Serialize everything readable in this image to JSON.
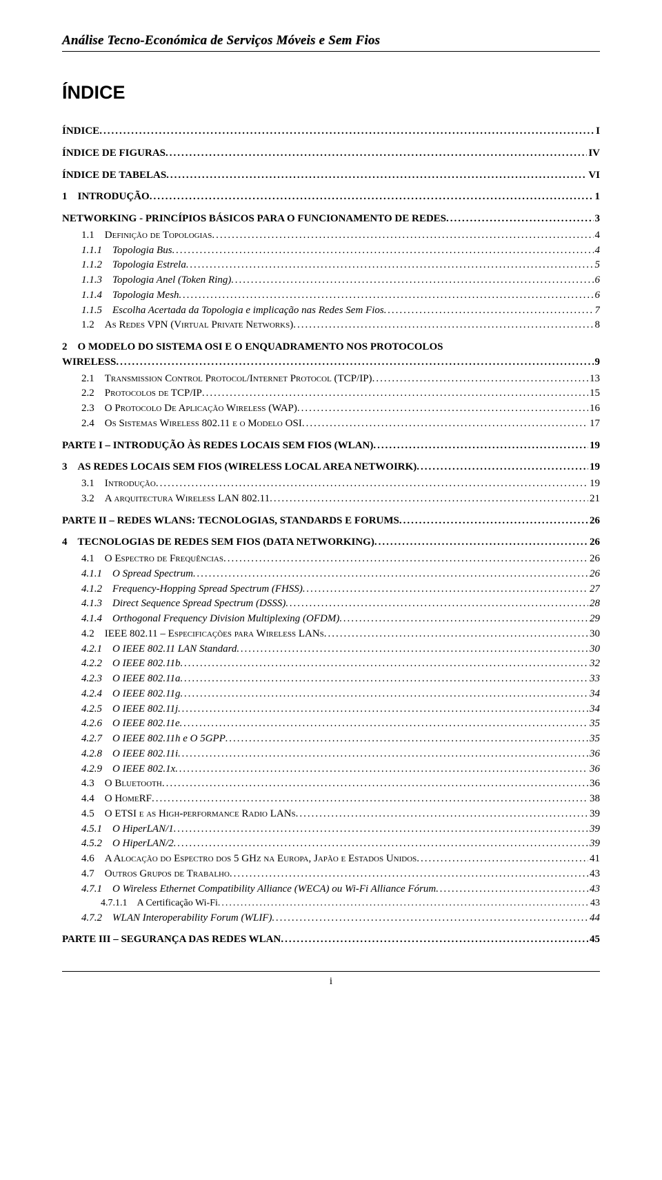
{
  "header": {
    "title": "Análise Tecno-Económica de Serviços Móveis e Sem Fios"
  },
  "index_heading": "ÍNDICE",
  "toc": [
    {
      "cls": "lvl-top",
      "label": "ÍNDICE",
      "page": "I"
    },
    {
      "cls": "lvl-top",
      "label": "ÍNDICE DE FIGURAS",
      "page": "IV"
    },
    {
      "cls": "lvl-top",
      "label": "ÍNDICE DE TABELAS",
      "page": "VI"
    },
    {
      "cls": "lvl-1",
      "label": "1 INTRODUÇÃO",
      "page": "1"
    },
    {
      "cls": "lvl-1",
      "label": "NETWORKING - PRINCÍPIOS BÁSICOS PARA O FUNCIONAMENTO DE REDES",
      "page": "3"
    },
    {
      "cls": "lvl-2",
      "label_html": "1.1 D<span class='sc'>efinição de Topologias</span>",
      "page": "4"
    },
    {
      "cls": "lvl-3",
      "label": "1.1.1 Topologia Bus",
      "page": "4"
    },
    {
      "cls": "lvl-3",
      "label": "1.1.2 Topologia Estrela",
      "page": "5"
    },
    {
      "cls": "lvl-3",
      "label": "1.1.3 Topologia Anel (Token Ring)",
      "page": "6"
    },
    {
      "cls": "lvl-3",
      "label": "1.1.4 Topologia Mesh",
      "page": "6"
    },
    {
      "cls": "lvl-3",
      "label": "1.1.5 Escolha Acertada da Topologia e implicação nas Redes Sem Fios",
      "page": "7"
    },
    {
      "cls": "lvl-2",
      "label_html": "1.2 A<span class='sc'>s Redes</span> VPN (V<span class='sc'>irtual Private Networks</span>)",
      "page": "8"
    },
    {
      "cls": "lvl-1",
      "label": "2 O MODELO DO SISTEMA OSI E O ENQUADRAMENTO NOS PROTOCOLOS WIRELESS",
      "page": "9",
      "wrap": true
    },
    {
      "cls": "lvl-2",
      "label_html": "2.1 T<span class='sc'>ransmission Control Protocol/Internet Protocol</span> (TCP/IP)",
      "page": "13"
    },
    {
      "cls": "lvl-2",
      "label_html": "2.2 P<span class='sc'>rotocolos de</span> TCP/IP",
      "page": "15"
    },
    {
      "cls": "lvl-2",
      "label_html": "2.3 O P<span class='sc'>rotocolo De Aplicação Wireless</span> (WAP)",
      "page": "16"
    },
    {
      "cls": "lvl-2",
      "label_html": "2.4 O<span class='sc'>s Sistemas Wireless</span> 802.11 <span class='sc'>e o Modelo</span> OSI",
      "page": "17"
    },
    {
      "cls": "lvl-1",
      "label": "PARTE I – INTRODUÇÃO ÀS REDES LOCAIS SEM FIOS (WLAN)",
      "page": "19"
    },
    {
      "cls": "lvl-1",
      "label": "3 AS REDES LOCAIS SEM FIOS (WIRELESS LOCAL AREA NETWOIRK)",
      "page": "19"
    },
    {
      "cls": "lvl-2",
      "label_html": "3.1 I<span class='sc'>ntrodução</span>",
      "page": "19"
    },
    {
      "cls": "lvl-2",
      "label_html": "3.2 A <span class='sc'>arquitectura Wireless</span> LAN 802.11",
      "page": "21"
    },
    {
      "cls": "lvl-1",
      "label": "PARTE II – REDES WLANS: TECNOLOGIAS, STANDARDS E FORUMS",
      "page": "26"
    },
    {
      "cls": "lvl-1",
      "label": "4 TECNOLOGIAS DE REDES SEM FIOS (DATA NETWORKING)",
      "page": "26"
    },
    {
      "cls": "lvl-2",
      "label_html": "4.1 O E<span class='sc'>spectro de Frequências</span>",
      "page": "26"
    },
    {
      "cls": "lvl-3",
      "label": "4.1.1 O Spread Spectrum",
      "page": "26"
    },
    {
      "cls": "lvl-3",
      "label": "4.1.2 Frequency-Hopping Spread Spectrum (FHSS)",
      "page": "27"
    },
    {
      "cls": "lvl-3",
      "label": "4.1.3 Direct Sequence Spread Spectrum (DSSS)",
      "page": "28"
    },
    {
      "cls": "lvl-3",
      "label": "4.1.4 Orthogonal Frequency Division Multiplexing (OFDM)",
      "page": "29"
    },
    {
      "cls": "lvl-2",
      "label_html": "4.2 IEEE 802.11 – E<span class='sc'>specificações para Wireless</span> LAN<span class='sc'>s</span>",
      "page": "30"
    },
    {
      "cls": "lvl-3",
      "label": "4.2.1 O IEEE 802.11 LAN Standard",
      "page": "30"
    },
    {
      "cls": "lvl-3",
      "label": "4.2.2 O IEEE 802.11b",
      "page": "32"
    },
    {
      "cls": "lvl-3",
      "label": "4.2.3 O IEEE 802.11a",
      "page": "33"
    },
    {
      "cls": "lvl-3",
      "label": "4.2.4 O IEEE 802.11g",
      "page": "34"
    },
    {
      "cls": "lvl-3",
      "label": "4.2.5 O IEEE 802.11j",
      "page": "34"
    },
    {
      "cls": "lvl-3",
      "label": "4.2.6 O IEEE 802.11e",
      "page": "35"
    },
    {
      "cls": "lvl-3",
      "label": "4.2.7 O IEEE 802.11h e O 5GPP",
      "page": "35"
    },
    {
      "cls": "lvl-3",
      "label": "4.2.8 O IEEE 802.11i",
      "page": "36"
    },
    {
      "cls": "lvl-3",
      "label": "4.2.9 O IEEE 802.1x",
      "page": "36"
    },
    {
      "cls": "lvl-2",
      "label_html": "4.3 O B<span class='sc'>luetooth</span>",
      "page": "36"
    },
    {
      "cls": "lvl-2",
      "label_html": "4.4 O H<span class='sc'>ome</span>RF",
      "page": "38"
    },
    {
      "cls": "lvl-2",
      "label_html": "4.5 O ETSI <span class='sc'>e as High-performance Radio</span> LAN<span class='sc'>s</span>",
      "page": "39"
    },
    {
      "cls": "lvl-3",
      "label": "4.5.1 O HiperLAN/1",
      "page": "39"
    },
    {
      "cls": "lvl-3",
      "label": "4.5.2 O HiperLAN/2",
      "page": "39"
    },
    {
      "cls": "lvl-2",
      "label_html": "4.6 A A<span class='sc'>locação do Espectro dos</span> 5 GH<span class='sc'>z na Europa, Japão e Estados Unidos</span>",
      "page": "41"
    },
    {
      "cls": "lvl-2",
      "label_html": "4.7 O<span class='sc'>utros Grupos de Trabalho</span>",
      "page": "43"
    },
    {
      "cls": "lvl-3",
      "label": "4.7.1 O Wireless Ethernet Compatibility Alliance (WECA) ou Wi-Fi Alliance Fórum",
      "page": "43"
    },
    {
      "cls": "lvl-4",
      "label": "4.7.1.1 A Certificação Wi-Fi",
      "page": "43"
    },
    {
      "cls": "lvl-3",
      "label": "4.7.2 WLAN Interoperability Forum (WLIF)",
      "page": "44"
    },
    {
      "cls": "lvl-1",
      "label": "PARTE III – SEGURANÇA DAS REDES WLAN",
      "page": "45"
    }
  ],
  "footer": {
    "page_num": "i"
  }
}
